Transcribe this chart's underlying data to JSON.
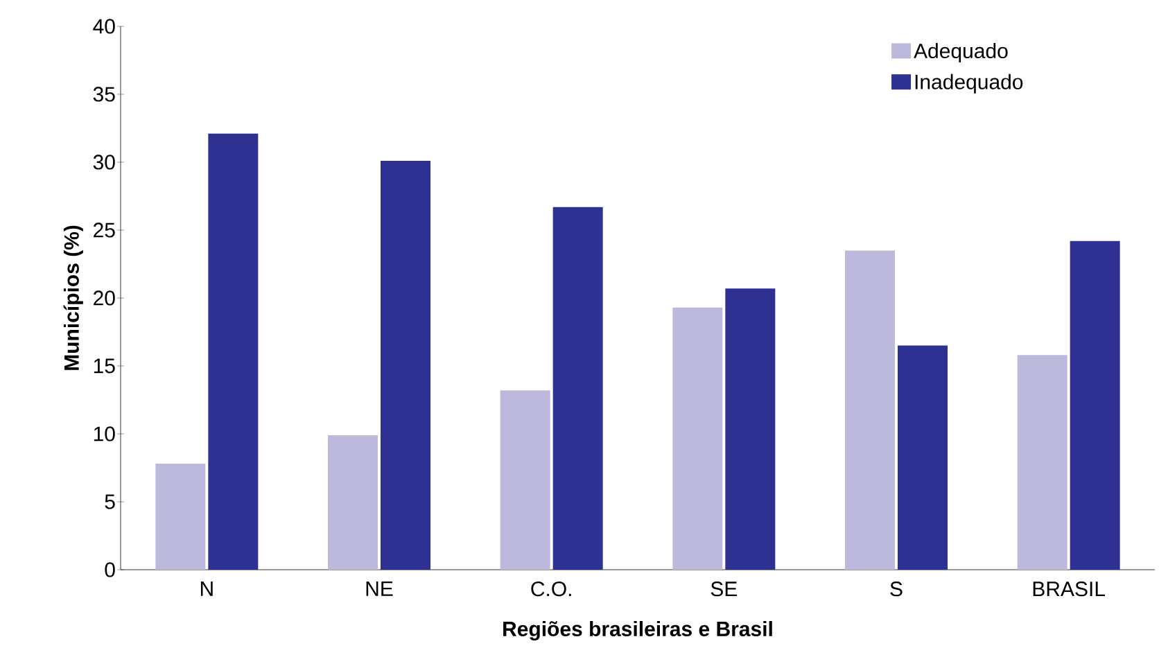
{
  "chart_data": {
    "type": "bar",
    "xlabel": "Regiões brasileiras e Brasil",
    "ylabel": "Municípios (%)",
    "categories": [
      "N",
      "NE",
      "C.O.",
      "SE",
      "S",
      "BRASIL"
    ],
    "series": [
      {
        "name": "Adequado",
        "color": "#bcb9dc",
        "values": [
          7.8,
          9.9,
          13.2,
          19.3,
          23.5,
          15.8
        ]
      },
      {
        "name": "Inadequado",
        "color": "#2e3192",
        "values": [
          32.1,
          30.1,
          26.7,
          20.7,
          16.5,
          24.2
        ]
      }
    ],
    "ylim": [
      0,
      40
    ],
    "yticks": [
      0,
      5,
      10,
      15,
      20,
      25,
      30,
      35,
      40
    ],
    "grid": false,
    "legend": "top right"
  }
}
